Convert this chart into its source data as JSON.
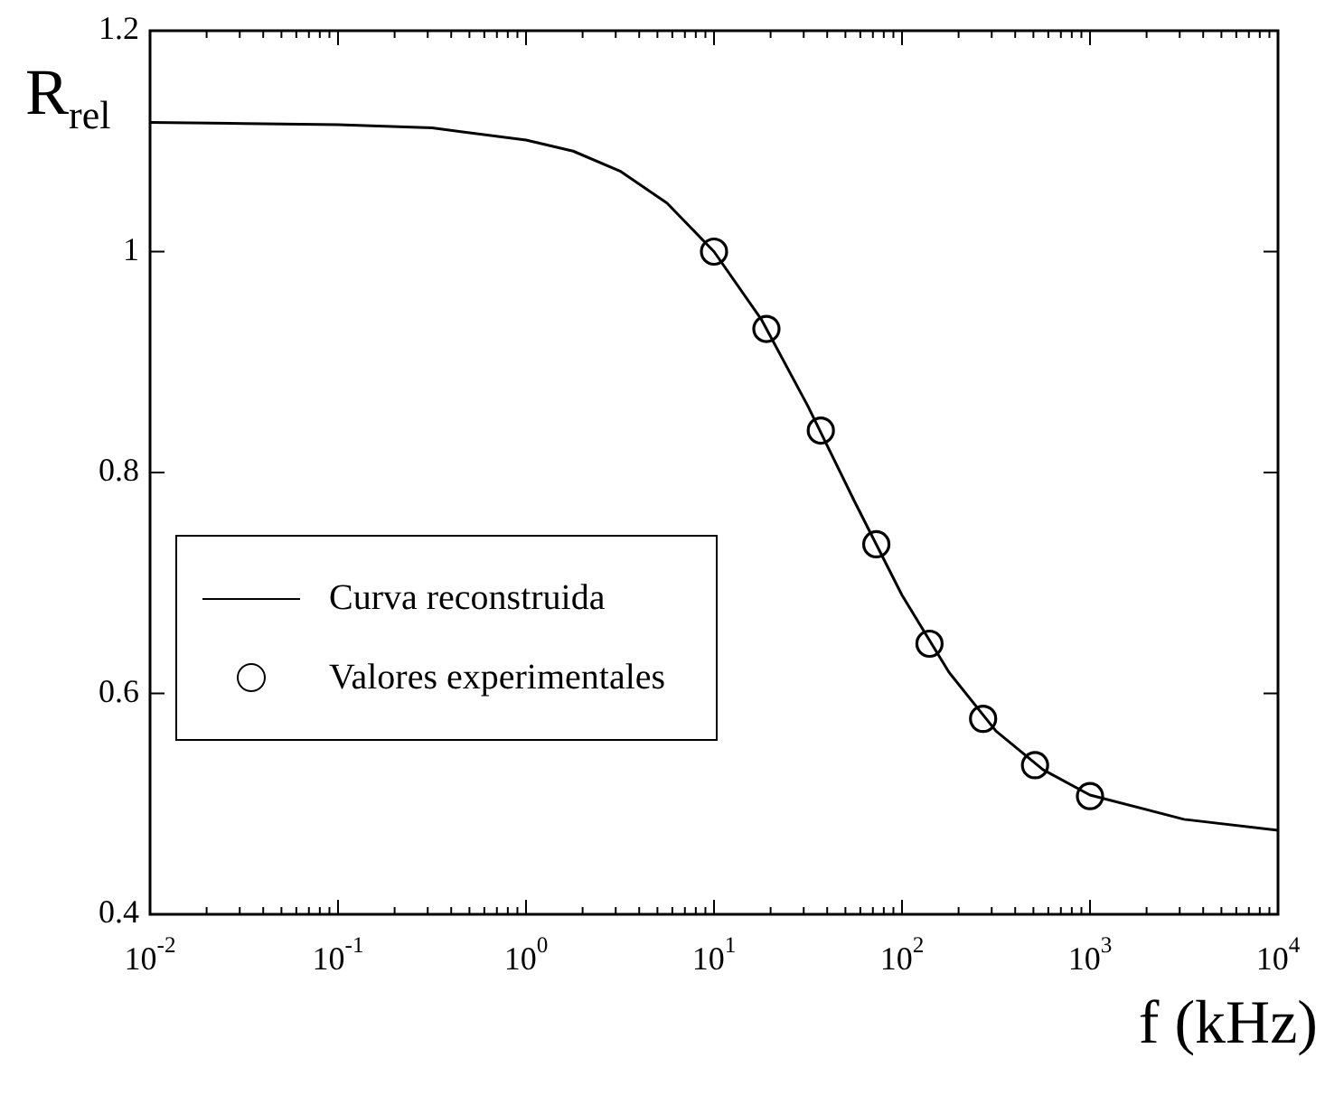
{
  "chart_data": {
    "type": "line",
    "xlabel": "f (kHz)",
    "ylabel": "R$_{rel}$",
    "log": "x",
    "grid": false,
    "legend": "bottom left",
    "xlim": [
      0.01,
      10000
    ],
    "xticks": [
      {
        "value": 0.01,
        "label": "10$^{-2}$"
      },
      {
        "value": 0.1,
        "label": "10$^{-1}$"
      },
      {
        "value": 1,
        "label": "10$^{0}$"
      },
      {
        "value": 10,
        "label": "10$^{1}$"
      },
      {
        "value": 100,
        "label": "10$^{2}$"
      },
      {
        "value": 1000,
        "label": "10$^{3}$"
      },
      {
        "value": 10000,
        "label": "10$^{4}$"
      }
    ],
    "ylim": [
      0.4,
      1.2
    ],
    "yticks": [
      0.4,
      0.6,
      0.8,
      1,
      1.2
    ],
    "series": [
      {
        "name": "Curva reconstruida",
        "type": "line",
        "color": "#000000",
        "marker": "none",
        "line_style": "solid",
        "x": [
          0.01,
          0.0316,
          0.1,
          0.316,
          1,
          1.78,
          3.16,
          5.62,
          10,
          17.8,
          31.6,
          56.2,
          100,
          178,
          316,
          562,
          1000,
          3162,
          10000
        ],
        "values": [
          1.117,
          1.116,
          1.115,
          1.112,
          1.101,
          1.091,
          1.073,
          1.044,
          1.0,
          0.939,
          0.86,
          0.773,
          0.689,
          0.619,
          0.566,
          0.531,
          0.508,
          0.486,
          0.476
        ]
      },
      {
        "name": "Valores experimentales",
        "type": "scatter",
        "color": "#000000",
        "marker": "circle",
        "x": [
          10,
          19,
          37,
          73,
          140,
          270,
          510,
          1000
        ],
        "values": [
          1.0,
          0.93,
          0.838,
          0.735,
          0.645,
          0.577,
          0.535,
          0.507
        ]
      }
    ]
  }
}
